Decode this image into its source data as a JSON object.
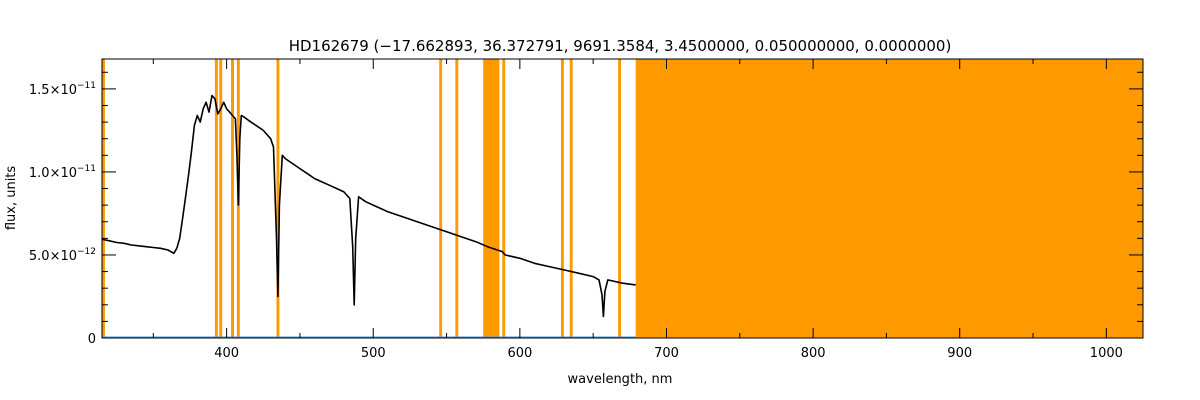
{
  "chart_data": {
    "type": "line",
    "title": "HD162679   (−17.662893, 36.372791, 9691.3584, 3.4500000, 0.050000000, 0.0000000)",
    "xlabel": "wavelength, nm",
    "ylabel": "flux, units",
    "xlim": [
      315,
      1025
    ],
    "ylim": [
      0,
      1.68e-11
    ],
    "grid": false,
    "x_ticks": [
      {
        "value": 400,
        "label": "400"
      },
      {
        "value": 500,
        "label": "500"
      },
      {
        "value": 600,
        "label": "600"
      },
      {
        "value": 700,
        "label": "700"
      },
      {
        "value": 800,
        "label": "800"
      },
      {
        "value": 900,
        "label": "900"
      },
      {
        "value": 1000,
        "label": "1000"
      }
    ],
    "y_ticks": [
      {
        "value": 0,
        "mant": "0",
        "exp": ""
      },
      {
        "value": 5e-12,
        "mant": "5.0×10",
        "exp": "−12"
      },
      {
        "value": 1e-11,
        "mant": "1.0×10",
        "exp": "−11"
      },
      {
        "value": 1.5e-11,
        "mant": "1.5×10",
        "exp": "−11"
      }
    ],
    "colors": {
      "flux": "#000000",
      "mask": "#ff9900",
      "error": "#3399ff"
    },
    "masked_regions": [
      [
        315,
        317
      ],
      [
        392,
        394
      ],
      [
        395,
        397
      ],
      [
        403,
        405
      ],
      [
        407,
        409
      ],
      [
        434,
        436
      ],
      [
        545,
        547
      ],
      [
        556,
        558
      ],
      [
        575,
        586
      ],
      [
        588,
        590
      ],
      [
        628,
        630
      ],
      [
        634,
        636
      ],
      [
        667,
        669
      ],
      [
        679,
        1025
      ]
    ],
    "series": [
      {
        "x": [
          315,
          320,
          325,
          330,
          335,
          340,
          345,
          350,
          355,
          360,
          364,
          366,
          368,
          370,
          372,
          374,
          376,
          378,
          380,
          382,
          384,
          386,
          388,
          390,
          392,
          394,
          396,
          398,
          400,
          402,
          404,
          406,
          407,
          408,
          409,
          410,
          412,
          415,
          420,
          425,
          430,
          432,
          434,
          435,
          436,
          438,
          440,
          445,
          450,
          455,
          460,
          465,
          470,
          475,
          480,
          484,
          486,
          487,
          488,
          490,
          495,
          500,
          510,
          520,
          530,
          540,
          550,
          560,
          570,
          578,
          588,
          590,
          600,
          610,
          620,
          630,
          640,
          650,
          654,
          656,
          657,
          658,
          660,
          670,
          679
        ],
        "y": [
          5.95e-12,
          5.85e-12,
          5.75e-12,
          5.7e-12,
          5.6e-12,
          5.55e-12,
          5.5e-12,
          5.45e-12,
          5.4e-12,
          5.3e-12,
          5.1e-12,
          5.4e-12,
          6e-12,
          7.2e-12,
          8.5e-12,
          9.8e-12,
          1.12e-11,
          1.28e-11,
          1.34e-11,
          1.3e-11,
          1.38e-11,
          1.42e-11,
          1.36e-11,
          1.46e-11,
          1.44e-11,
          1.35e-11,
          1.38e-11,
          1.42e-11,
          1.38e-11,
          1.36e-11,
          1.34e-11,
          1.32e-11,
          1.1e-11,
          8e-12,
          1.2e-11,
          1.34e-11,
          1.33e-11,
          1.31e-11,
          1.28e-11,
          1.25e-11,
          1.2e-11,
          1.15e-11,
          6e-12,
          2.5e-12,
          8e-12,
          1.1e-11,
          1.08e-11,
          1.05e-11,
          1.02e-11,
          9.9e-12,
          9.6e-12,
          9.4e-12,
          9.2e-12,
          9e-12,
          8.8e-12,
          8.4e-12,
          5.5e-12,
          2e-12,
          6e-12,
          8.5e-12,
          8.2e-12,
          8e-12,
          7.6e-12,
          7.3e-12,
          7e-12,
          6.7e-12,
          6.4e-12,
          6.1e-12,
          5.8e-12,
          5.5e-12,
          5.2e-12,
          5e-12,
          4.8e-12,
          4.5e-12,
          4.3e-12,
          4.1e-12,
          3.9e-12,
          3.7e-12,
          3.5e-12,
          2.6e-12,
          1.3e-12,
          2.8e-12,
          3.5e-12,
          3.3e-12,
          3.2e-12
        ]
      },
      {
        "x": [
          315,
          679
        ],
        "y": [
          3e-14,
          3e-14
        ]
      }
    ]
  }
}
